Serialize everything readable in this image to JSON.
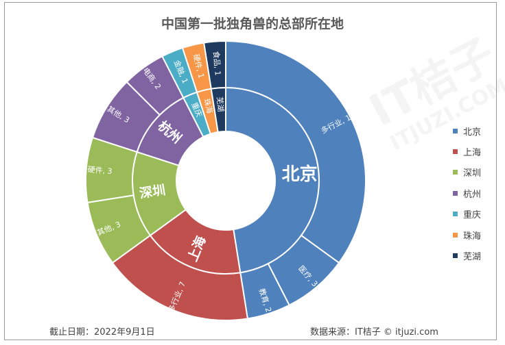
{
  "chart_data": {
    "type": "sunburst",
    "title": "中国第一批独角兽的总部所在地",
    "inner": [
      {
        "name": "北京",
        "value": 19,
        "color": "#4f81bd"
      },
      {
        "name": "上海",
        "value": 7,
        "color": "#c0504d"
      },
      {
        "name": "深圳",
        "value": 6,
        "color": "#9bbb59"
      },
      {
        "name": "杭州",
        "value": 5,
        "color": "#8064a2"
      },
      {
        "name": "重庆",
        "value": 1,
        "color": "#4bacc6"
      },
      {
        "name": "珠海",
        "value": 1,
        "color": "#f79646"
      },
      {
        "name": "芜湖",
        "value": 1,
        "color": "#1f3a5f"
      }
    ],
    "outer": [
      {
        "parent": "北京",
        "label": "多行业, 14",
        "value": 14
      },
      {
        "parent": "北京",
        "label": "医疗, 3",
        "value": 3
      },
      {
        "parent": "北京",
        "label": "教育, 2",
        "value": 2
      },
      {
        "parent": "上海",
        "label": "多行业, 7",
        "value": 7
      },
      {
        "parent": "深圳",
        "label": "其他, 3",
        "value": 3
      },
      {
        "parent": "深圳",
        "label": "硬件, 3",
        "value": 3
      },
      {
        "parent": "杭州",
        "label": "其他, 3",
        "value": 3
      },
      {
        "parent": "杭州",
        "label": "电商, 2",
        "value": 2
      },
      {
        "parent": "芜湖",
        "label": "食品, 1",
        "value": 1
      },
      {
        "parent": "珠海",
        "label": "硬件, 1",
        "value": 1
      },
      {
        "parent": "重庆",
        "label": "金融, 1",
        "value": 1
      }
    ],
    "legend": [
      "北京",
      "上海",
      "深圳",
      "杭州",
      "重庆",
      "珠海",
      "芜湖"
    ],
    "legend_position": "right"
  },
  "footer": {
    "date": "截止日期：2022年9月1日",
    "source": "数据来源：IT桔子 © itjuzi.com"
  },
  "watermark": {
    "brand": "IT桔子",
    "url": "ITJUZI.COM"
  },
  "colors": {
    "北京": "#4f81bd",
    "上海": "#c0504d",
    "深圳": "#9bbb59",
    "杭州": "#8064a2",
    "重庆": "#4bacc6",
    "珠海": "#f79646",
    "芜湖": "#1f3a5f"
  }
}
